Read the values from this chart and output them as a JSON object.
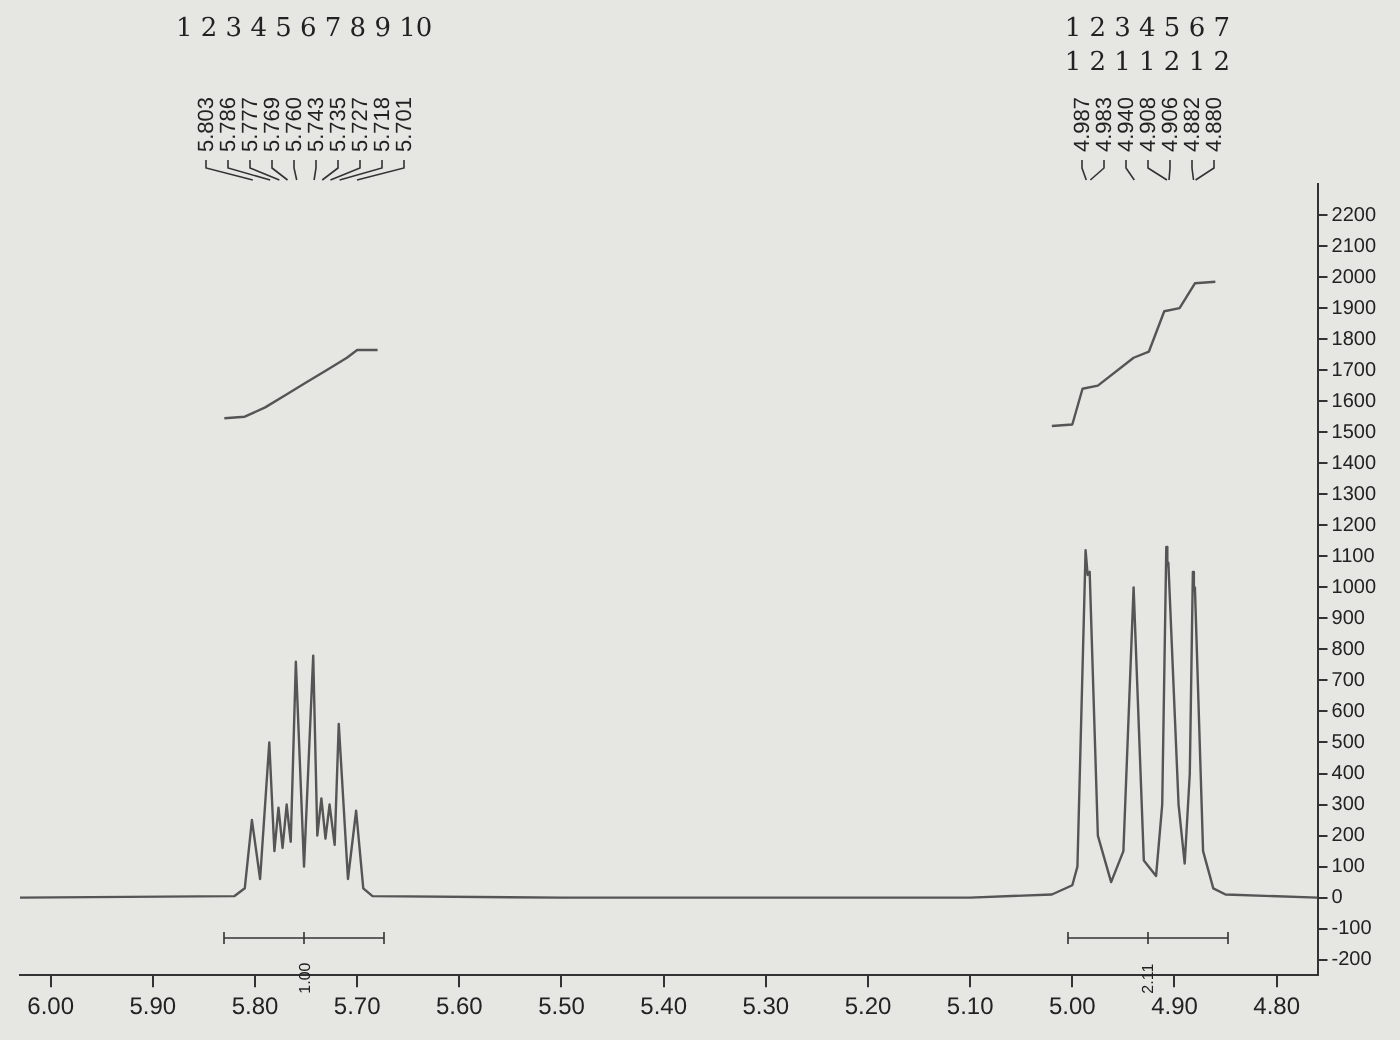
{
  "chart_data": {
    "type": "line",
    "xlim": [
      6.03,
      4.76
    ],
    "ylim": [
      -250,
      2300
    ],
    "xticks": [
      {
        "value": 6.0,
        "label": "6.00"
      },
      {
        "value": 5.9,
        "label": "5.90"
      },
      {
        "value": 5.8,
        "label": "5.80"
      },
      {
        "value": 5.7,
        "label": "5.70"
      },
      {
        "value": 5.6,
        "label": "5.60"
      },
      {
        "value": 5.5,
        "label": "5.50"
      },
      {
        "value": 5.4,
        "label": "5.40"
      },
      {
        "value": 5.3,
        "label": "5.30"
      },
      {
        "value": 5.2,
        "label": "5.20"
      },
      {
        "value": 5.1,
        "label": "5.10"
      },
      {
        "value": 5.0,
        "label": "5.00"
      },
      {
        "value": 4.9,
        "label": "4.90"
      },
      {
        "value": 4.8,
        "label": "4.80"
      }
    ],
    "yticks": [
      -200,
      -100,
      0,
      100,
      200,
      300,
      400,
      500,
      600,
      700,
      800,
      900,
      1000,
      1100,
      1200,
      1300,
      1400,
      1500,
      1600,
      1700,
      1800,
      1900,
      2000,
      2100,
      2200
    ],
    "grid": false,
    "legend": false,
    "series": [
      {
        "color": "#555555",
        "x": [
          6.03,
          5.82,
          5.81,
          5.803,
          5.795,
          5.786,
          5.781,
          5.777,
          5.773,
          5.769,
          5.765,
          5.76,
          5.752,
          5.743,
          5.739,
          5.735,
          5.731,
          5.727,
          5.722,
          5.718,
          5.709,
          5.701,
          5.694,
          5.685,
          5.5,
          5.1,
          5.02,
          5.0,
          4.995,
          4.987,
          4.985,
          4.983,
          4.975,
          4.962,
          4.95,
          4.94,
          4.93,
          4.918,
          4.912,
          4.908,
          4.907,
          4.906,
          4.896,
          4.89,
          4.885,
          4.882,
          4.881,
          4.88,
          4.872,
          4.862,
          4.85,
          4.76
        ],
        "values": [
          0,
          5,
          30,
          250,
          60,
          500,
          150,
          290,
          160,
          300,
          180,
          760,
          100,
          780,
          200,
          320,
          190,
          300,
          170,
          560,
          60,
          280,
          30,
          5,
          0,
          0,
          10,
          40,
          100,
          1120,
          1040,
          1050,
          200,
          50,
          150,
          1000,
          120,
          70,
          300,
          1130,
          1070,
          1080,
          300,
          110,
          400,
          1050,
          990,
          1000,
          150,
          30,
          10,
          0
        ]
      },
      {
        "color": "#555555",
        "x": [
          5.83,
          5.81,
          5.79,
          5.77,
          5.75,
          5.73,
          5.71,
          5.7,
          5.68
        ],
        "values": [
          1545,
          1550,
          1580,
          1620,
          1660,
          1700,
          1740,
          1765,
          1765
        ]
      },
      {
        "color": "#555555",
        "x": [
          5.02,
          5.0,
          4.99,
          4.975,
          4.94,
          4.925,
          4.91,
          4.895,
          4.88,
          4.86
        ],
        "values": [
          1520,
          1525,
          1640,
          1650,
          1740,
          1760,
          1890,
          1900,
          1980,
          1985
        ]
      }
    ],
    "annotations": [
      "5.803",
      "5.786",
      "5.777",
      "5.769",
      "5.760",
      "5.743",
      "5.735",
      "5.727",
      "5.718",
      "5.701",
      "4.987",
      "4.983",
      "4.940",
      "4.908",
      "4.906",
      "4.882",
      "4.880",
      "1 2 3 4 5 6 7 8 9 10",
      "1 2 3 4 5 6 7",
      "1 2 1 1 2 1 2",
      "1.00",
      "2.11"
    ]
  }
}
